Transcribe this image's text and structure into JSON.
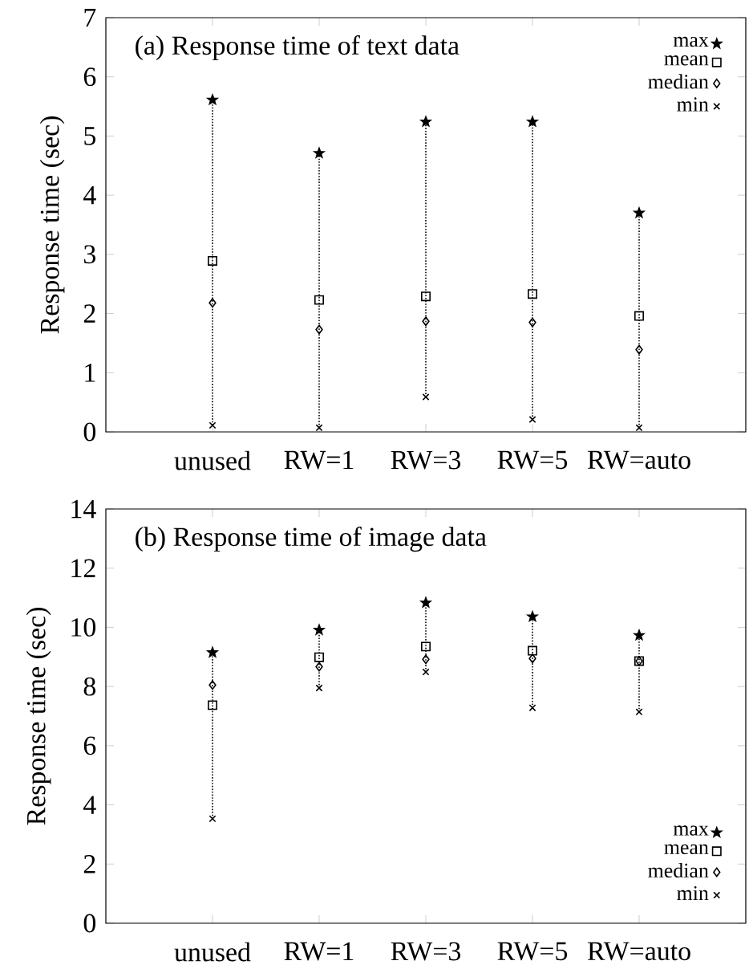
{
  "chart_data": [
    {
      "type": "scatter",
      "title": "(a) Response time of text data",
      "ylabel": "Response time (sec)",
      "categories": [
        "unused",
        "RW=1",
        "RW=3",
        "RW=5",
        "RW=auto"
      ],
      "ylim": [
        0,
        7
      ],
      "yticks": [
        0,
        1,
        2,
        3,
        4,
        5,
        6,
        7
      ],
      "legend": "top right",
      "series": [
        {
          "name": "max",
          "color": "#000000",
          "marker": "star",
          "values": [
            5.61,
            4.71,
            5.24,
            5.24,
            3.7
          ]
        },
        {
          "name": "mean",
          "color": "#000000",
          "marker": "square",
          "values": [
            2.89,
            2.23,
            2.29,
            2.33,
            1.96
          ]
        },
        {
          "name": "median",
          "color": "#000000",
          "marker": "diamond",
          "values": [
            2.18,
            1.73,
            1.87,
            1.85,
            1.39
          ]
        },
        {
          "name": "min",
          "color": "#000000",
          "marker": "cross",
          "values": [
            0.11,
            0.07,
            0.59,
            0.21,
            0.07
          ]
        }
      ]
    },
    {
      "type": "scatter",
      "title": "(b) Response time of image data",
      "ylabel": "Response time (sec)",
      "categories": [
        "unused",
        "RW=1",
        "RW=3",
        "RW=5",
        "RW=auto"
      ],
      "ylim": [
        0,
        14
      ],
      "yticks": [
        0,
        2,
        4,
        6,
        8,
        10,
        12,
        14
      ],
      "legend": "bottom right",
      "series": [
        {
          "name": "max",
          "color": "#000000",
          "marker": "star",
          "values": [
            9.15,
            9.91,
            10.83,
            10.36,
            9.73
          ]
        },
        {
          "name": "mean",
          "color": "#000000",
          "marker": "square",
          "values": [
            7.37,
            8.99,
            9.35,
            9.21,
            8.86
          ]
        },
        {
          "name": "median",
          "color": "#000000",
          "marker": "diamond",
          "values": [
            8.05,
            8.67,
            8.92,
            8.95,
            8.86
          ]
        },
        {
          "name": "min",
          "color": "#000000",
          "marker": "cross",
          "values": [
            3.53,
            7.95,
            8.49,
            7.28,
            7.14
          ]
        }
      ]
    }
  ]
}
